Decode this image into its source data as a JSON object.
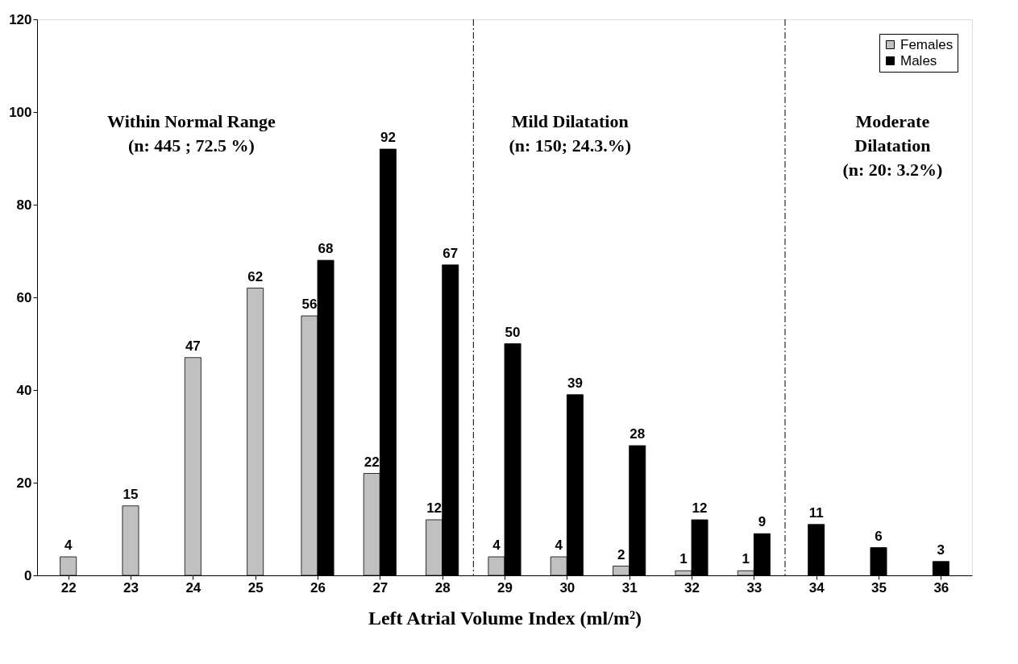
{
  "chart_data": {
    "type": "bar",
    "xlabel": "Left Atrial Volume Index (ml/m²)",
    "x": [
      22,
      23,
      24,
      25,
      26,
      27,
      28,
      29,
      30,
      31,
      32,
      33,
      34,
      35,
      36
    ],
    "xlim": [
      21.5,
      36.5
    ],
    "xticks": [
      22,
      23,
      24,
      25,
      26,
      27,
      28,
      29,
      30,
      31,
      32,
      33,
      34,
      35,
      36
    ],
    "ylim": [
      0,
      120
    ],
    "yticks": [
      0,
      20,
      40,
      60,
      80,
      100,
      120
    ],
    "series": [
      {
        "name": "Females",
        "color": "#c0c0c0",
        "values": [
          4,
          15,
          47,
          62,
          56,
          22,
          12,
          4,
          4,
          2,
          1,
          1,
          null,
          null,
          null
        ]
      },
      {
        "name": "Males",
        "color": "#000000",
        "values": [
          null,
          null,
          null,
          null,
          68,
          92,
          67,
          50,
          39,
          28,
          12,
          9,
          11,
          6,
          3
        ]
      }
    ],
    "data_labels": true,
    "legend": "top right",
    "grid": false,
    "ref_lines": [
      {
        "axis": "x",
        "value": 28.5,
        "line_style": "dashed",
        "color": "#000000"
      },
      {
        "axis": "x",
        "value": 33.5,
        "line_style": "dashed",
        "color": "#000000"
      }
    ],
    "annotations": [
      "Within Normal Range\n(n: 445 ; 72.5 %)",
      "Mild Dilatation\n(n: 150; 24.3.%)",
      "Moderate\nDilatation\n(n: 20: 3.2%)"
    ]
  }
}
